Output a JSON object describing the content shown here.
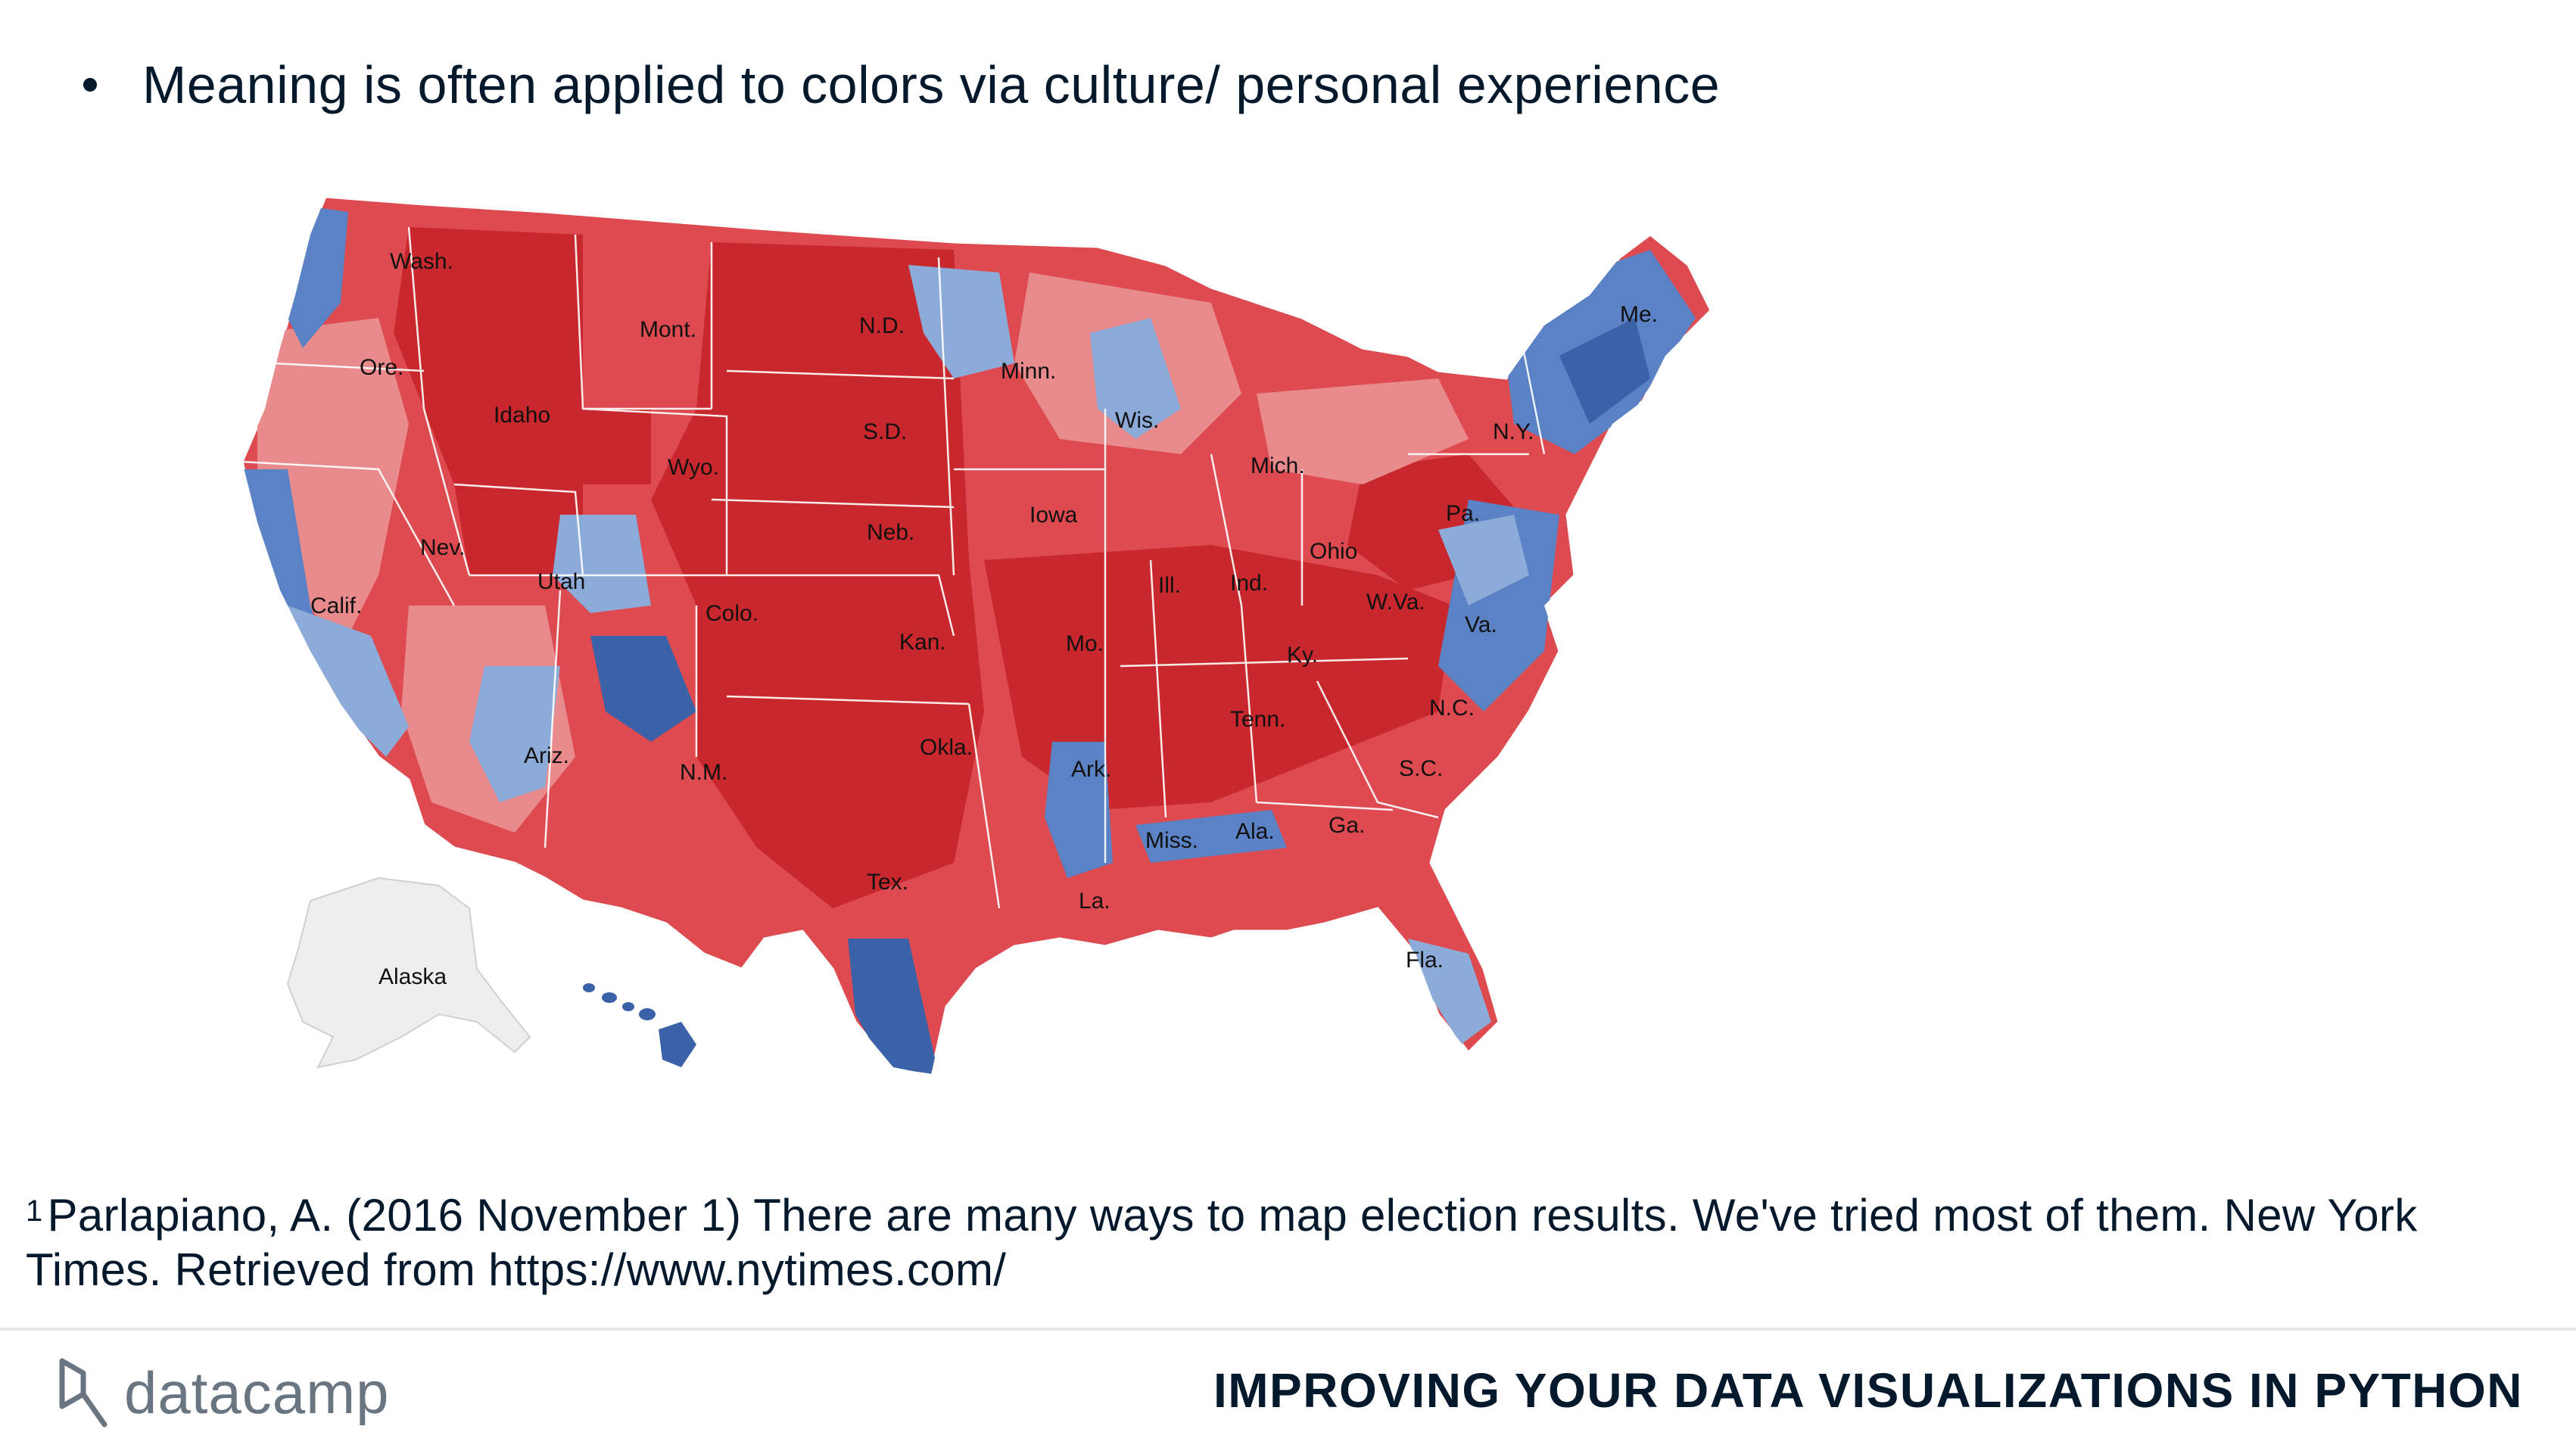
{
  "slide": {
    "bullet": "Meaning is often applied to colors via culture/ personal experience",
    "footnote_marker": "1",
    "footnote_text": "Parlapiano, A. (2016 November 1) There are many ways to map election results. We've tried most of them. New York Times. Retrieved from https://www.nytimes.com/"
  },
  "footer": {
    "logo_text": "datacamp",
    "course_title": "IMPROVING YOUR DATA VISUALIZATIONS IN PYTHON"
  },
  "map": {
    "colors": {
      "dark_red": "#c8282d",
      "red": "#dd4a50",
      "light_red": "#e98a8d",
      "light_blue": "#8cabd8",
      "blue": "#5b82c4",
      "dark_blue": "#3b62a8",
      "alaska": "#eeeeee"
    },
    "labels": {
      "wash": "Wash.",
      "ore": "Ore.",
      "calif": "Calif.",
      "idaho": "Idaho",
      "nev": "Nev.",
      "mont": "Mont.",
      "wyo": "Wyo.",
      "utah": "Utah",
      "colo": "Colo.",
      "ariz": "Ariz.",
      "nm": "N.M.",
      "nd": "N.D.",
      "sd": "S.D.",
      "neb": "Neb.",
      "kan": "Kan.",
      "okla": "Okla.",
      "tex": "Tex.",
      "minn": "Minn.",
      "iowa": "Iowa",
      "mo": "Mo.",
      "ark": "Ark.",
      "la": "La.",
      "wis": "Wis.",
      "ill": "Ill.",
      "mich": "Mich.",
      "ind": "Ind.",
      "ohio": "Ohio",
      "ky": "Ky.",
      "tenn": "Tenn.",
      "miss": "Miss.",
      "ala": "Ala.",
      "ga": "Ga.",
      "fla": "Fla.",
      "sc": "S.C.",
      "nc": "N.C.",
      "va": "Va.",
      "wva": "W.Va.",
      "pa": "Pa.",
      "ny": "N.Y.",
      "me": "Me.",
      "alaska": "Alaska"
    }
  }
}
